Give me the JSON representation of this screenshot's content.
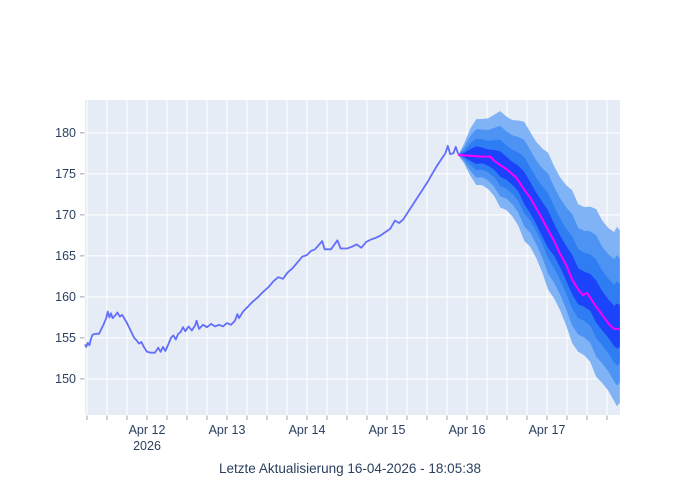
{
  "caption": "Letzte Aktualisierung 16-04-2026 - 18:05:38",
  "colors": {
    "paper_bg": "#ffffff",
    "plot_bg": "#e5ecf6",
    "grid": "#ffffff",
    "tick_text": "#2a3f5f",
    "tick_mark": "#9aa3b5",
    "historical_line": "#636efa",
    "forecast_line": "#ff00ff",
    "bands_outer_to_inner": [
      "#7fb3f6",
      "#4d93f4",
      "#2f7df2",
      "#1b43fa"
    ]
  },
  "chart_data": {
    "type": "line",
    "title": "",
    "xlabel": "",
    "ylabel": "",
    "x_unit": "days since 2026-04-11 00:00",
    "x_range": [
      0.225,
      6.9125
    ],
    "y_range": [
      145.6,
      184.0
    ],
    "grid": true,
    "legend_position": "none",
    "y_ticks": [
      150,
      155,
      160,
      165,
      170,
      175,
      180
    ],
    "x_tick_labels": [
      {
        "d": 1,
        "line1": "Apr 12",
        "line2": "2026"
      },
      {
        "d": 2,
        "line1": "Apr 13"
      },
      {
        "d": 3,
        "line1": "Apr 14"
      },
      {
        "d": 4,
        "line1": "Apr 15"
      },
      {
        "d": 5,
        "line1": "Apr 16"
      },
      {
        "d": 6,
        "line1": "Apr 17"
      }
    ],
    "minor_tick_step": 0.25,
    "series": [
      {
        "name": "historical",
        "x": [
          0.225,
          0.24,
          0.26,
          0.28,
          0.3,
          0.32,
          0.36,
          0.4,
          0.43,
          0.46,
          0.49,
          0.51,
          0.53,
          0.55,
          0.57,
          0.6,
          0.63,
          0.66,
          0.69,
          0.72,
          0.75,
          0.78,
          0.81,
          0.84,
          0.87,
          0.9,
          0.93,
          0.96,
          1.0,
          1.05,
          1.1,
          1.14,
          1.17,
          1.2,
          1.23,
          1.27,
          1.3,
          1.33,
          1.36,
          1.39,
          1.42,
          1.45,
          1.48,
          1.52,
          1.56,
          1.6,
          1.62,
          1.65,
          1.7,
          1.75,
          1.8,
          1.85,
          1.9,
          1.95,
          2.0,
          2.05,
          2.1,
          2.13,
          2.15,
          2.2,
          2.26,
          2.32,
          2.38,
          2.45,
          2.52,
          2.58,
          2.64,
          2.7,
          2.76,
          2.82,
          2.88,
          2.94,
          3.0,
          3.05,
          3.1,
          3.19,
          3.22,
          3.3,
          3.38,
          3.42,
          3.5,
          3.56,
          3.62,
          3.68,
          3.74,
          3.8,
          3.86,
          3.92,
          3.98,
          4.04,
          4.1,
          4.15,
          4.2,
          4.26,
          4.32,
          4.38,
          4.44,
          4.5,
          4.56,
          4.62,
          4.68,
          4.73,
          4.76,
          4.79,
          4.83,
          4.86,
          4.89
        ],
        "y": [
          154.2,
          153.9,
          154.4,
          154.1,
          154.9,
          155.4,
          155.5,
          155.5,
          156.1,
          156.7,
          157.4,
          158.2,
          157.5,
          158.0,
          157.4,
          157.7,
          158.1,
          157.6,
          157.8,
          157.3,
          156.8,
          156.2,
          155.6,
          155.0,
          154.7,
          154.3,
          154.5,
          153.9,
          153.3,
          153.2,
          153.2,
          153.8,
          153.3,
          153.9,
          153.4,
          154.3,
          155.0,
          155.3,
          154.8,
          155.5,
          155.7,
          156.3,
          155.8,
          156.4,
          155.9,
          156.5,
          157.1,
          156.1,
          156.6,
          156.3,
          156.7,
          156.4,
          156.6,
          156.4,
          156.8,
          156.6,
          157.1,
          157.9,
          157.4,
          158.2,
          158.8,
          159.4,
          159.9,
          160.6,
          161.2,
          161.9,
          162.4,
          162.2,
          163.0,
          163.5,
          164.2,
          164.9,
          165.1,
          165.6,
          165.8,
          166.8,
          165.8,
          165.8,
          166.9,
          165.9,
          165.9,
          166.1,
          166.4,
          166.0,
          166.7,
          167.0,
          167.2,
          167.5,
          167.9,
          168.3,
          169.3,
          169.0,
          169.4,
          170.3,
          171.2,
          172.1,
          173.0,
          173.9,
          174.9,
          175.9,
          176.8,
          177.5,
          178.4,
          177.4,
          177.5,
          178.3,
          177.4
        ]
      },
      {
        "name": "forecast_median",
        "x": [
          4.89,
          5.04,
          5.19,
          5.29,
          5.34,
          5.41,
          5.49,
          5.55,
          5.61,
          5.66,
          5.72,
          5.79,
          5.86,
          5.94,
          6.01,
          6.09,
          6.16,
          6.24,
          6.31,
          6.39,
          6.45,
          6.5,
          6.54,
          6.6,
          6.66,
          6.72,
          6.78,
          6.84,
          6.91
        ],
        "y": [
          177.3,
          177.2,
          177.1,
          177.1,
          176.6,
          176.1,
          175.6,
          175.1,
          174.6,
          173.9,
          173.0,
          172.1,
          170.9,
          169.5,
          168.2,
          166.8,
          165.3,
          163.9,
          162.2,
          160.9,
          160.2,
          160.5,
          159.9,
          159.0,
          158.2,
          157.4,
          156.6,
          156.1,
          156.1
        ]
      }
    ],
    "bands": [
      {
        "name": "quantile_band_outer",
        "x": [
          4.89,
          5.04,
          5.19,
          5.34,
          5.49,
          5.64,
          5.79,
          5.94,
          6.09,
          6.24,
          6.39,
          6.54,
          6.69,
          6.84,
          6.91
        ],
        "upper": [
          177.3,
          180.5,
          181.7,
          182.2,
          182.0,
          181.5,
          180.1,
          178.1,
          175.9,
          173.6,
          171.3,
          171.0,
          169.3,
          167.9,
          168.1
        ],
        "lower": [
          177.3,
          174.8,
          173.6,
          172.3,
          170.6,
          168.7,
          166.1,
          163.0,
          159.8,
          156.5,
          153.3,
          152.1,
          149.5,
          147.3,
          147.1
        ]
      },
      {
        "name": "quantile_band_mid_outer",
        "x": [
          4.89,
          5.04,
          5.19,
          5.34,
          5.49,
          5.64,
          5.79,
          5.94,
          6.09,
          6.24,
          6.39,
          6.54,
          6.69,
          6.84,
          6.91
        ],
        "upper": [
          177.3,
          179.6,
          180.4,
          180.6,
          180.2,
          179.5,
          177.9,
          175.7,
          173.4,
          170.9,
          168.4,
          168.0,
          166.1,
          164.6,
          164.7
        ],
        "lower": [
          177.3,
          175.4,
          174.6,
          173.4,
          172.0,
          170.3,
          167.8,
          164.8,
          161.7,
          158.5,
          155.4,
          154.4,
          151.9,
          149.7,
          149.6
        ]
      },
      {
        "name": "quantile_band_mid_inner",
        "x": [
          4.89,
          5.04,
          5.19,
          5.34,
          5.49,
          5.64,
          5.79,
          5.94,
          6.09,
          6.24,
          6.39,
          6.54,
          6.69,
          6.84,
          6.91
        ],
        "upper": [
          177.3,
          178.7,
          179.2,
          179.1,
          178.5,
          177.6,
          175.8,
          173.5,
          171.0,
          168.3,
          165.8,
          165.2,
          163.2,
          161.5,
          161.6
        ],
        "lower": [
          177.3,
          176.1,
          175.5,
          174.6,
          173.2,
          171.7,
          169.3,
          166.5,
          163.5,
          160.4,
          157.4,
          156.5,
          154.1,
          152.0,
          151.9
        ]
      },
      {
        "name": "quantile_band_inner",
        "x": [
          4.89,
          5.04,
          5.19,
          5.34,
          5.49,
          5.64,
          5.79,
          5.94,
          6.09,
          6.24,
          6.39,
          6.54,
          6.69,
          6.84,
          6.91
        ],
        "upper": [
          177.3,
          178.0,
          178.2,
          177.9,
          177.1,
          176.0,
          174.0,
          171.6,
          168.9,
          166.2,
          163.5,
          162.8,
          160.7,
          158.9,
          159.0
        ],
        "lower": [
          177.3,
          176.6,
          176.3,
          175.5,
          174.3,
          172.9,
          170.2,
          167.4,
          165.0,
          162.0,
          159.1,
          158.3,
          155.9,
          154.0,
          153.9
        ]
      }
    ]
  }
}
